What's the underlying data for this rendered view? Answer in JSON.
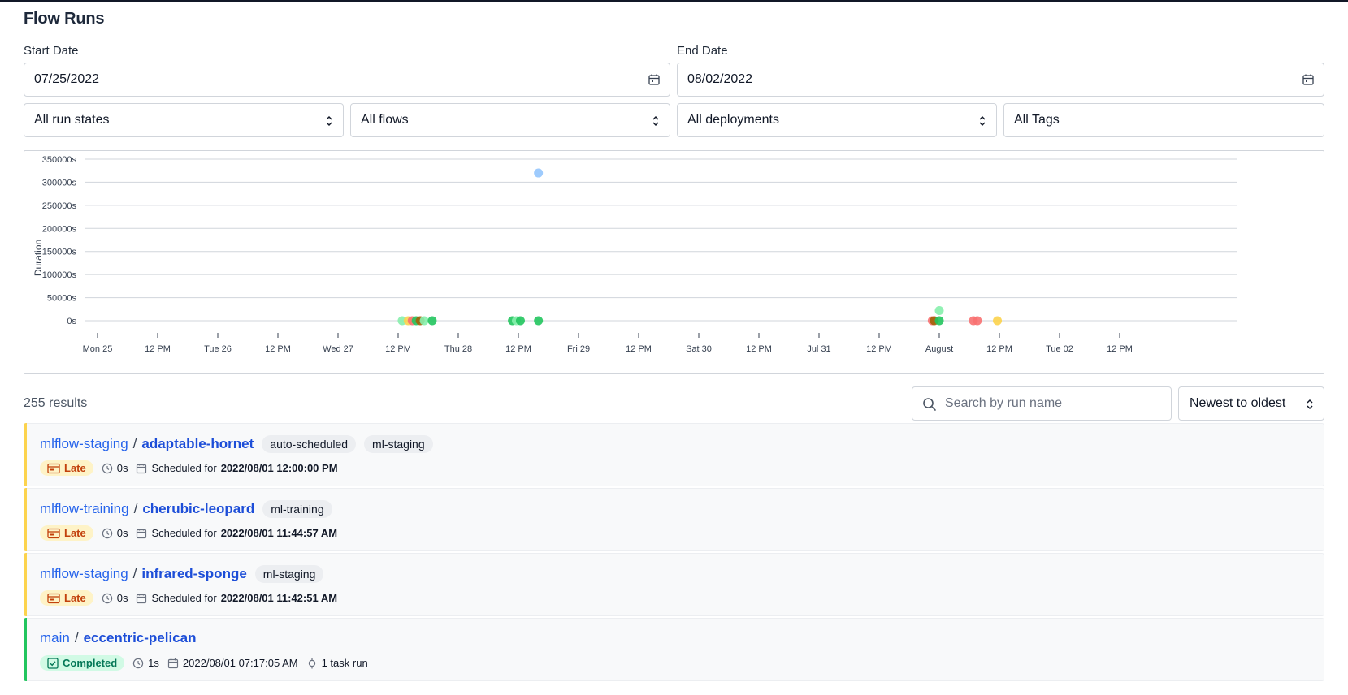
{
  "page": {
    "title": "Flow Runs"
  },
  "filters": {
    "start_date_label": "Start Date",
    "start_date_value": "07/25/2022",
    "end_date_label": "End Date",
    "end_date_value": "08/02/2022",
    "run_states": "All run states",
    "flows": "All flows",
    "deployments": "All deployments",
    "tags": "All Tags"
  },
  "chart_data": {
    "type": "scatter",
    "title": "",
    "xlabel": "",
    "ylabel": "Duration",
    "y_ticks": [
      "350000s",
      "300000s",
      "250000s",
      "200000s",
      "150000s",
      "100000s",
      "50000s",
      "0s"
    ],
    "ylim": [
      0,
      350000
    ],
    "x_ticks": [
      "Mon 25",
      "12 PM",
      "Tue 26",
      "12 PM",
      "Wed 27",
      "12 PM",
      "Thu 28",
      "12 PM",
      "Fri 29",
      "12 PM",
      "Sat 30",
      "12 PM",
      "Jul 31",
      "12 PM",
      "August",
      "12 PM",
      "Tue 02",
      "12 PM"
    ],
    "xlim": [
      "2022-07-25 00:00",
      "2022-08-02 12:00"
    ],
    "grid": true,
    "state_colors": {
      "completed": "#22c55e",
      "completed_light": "#86efac",
      "late": "#fcd34d",
      "failed": "#f87171",
      "running": "#93c5fd",
      "crashed": "#a16207"
    },
    "points": [
      {
        "x": "2022-07-28 16:00",
        "y": 320000,
        "state": "running"
      },
      {
        "x": "2022-07-27 12:48",
        "y": 0,
        "state": "completed_light"
      },
      {
        "x": "2022-07-27 14:00",
        "y": 0,
        "state": "late"
      },
      {
        "x": "2022-07-27 14:48",
        "y": 0,
        "state": "failed"
      },
      {
        "x": "2022-07-27 15:36",
        "y": 0,
        "state": "completed"
      },
      {
        "x": "2022-07-27 16:24",
        "y": 0,
        "state": "crashed"
      },
      {
        "x": "2022-07-27 17:12",
        "y": 0,
        "state": "completed_light"
      },
      {
        "x": "2022-07-27 18:48",
        "y": 0,
        "state": "completed"
      },
      {
        "x": "2022-07-28 10:48",
        "y": 0,
        "state": "completed"
      },
      {
        "x": "2022-07-28 11:36",
        "y": 0,
        "state": "completed_light"
      },
      {
        "x": "2022-07-28 12:24",
        "y": 0,
        "state": "completed"
      },
      {
        "x": "2022-07-28 16:00",
        "y": 0,
        "state": "completed"
      },
      {
        "x": "2022-07-31 22:36",
        "y": 0,
        "state": "failed"
      },
      {
        "x": "2022-07-31 23:00",
        "y": 0,
        "state": "crashed"
      },
      {
        "x": "2022-08-01 00:00",
        "y": 0,
        "state": "completed"
      },
      {
        "x": "2022-08-01 00:00",
        "y": 22000,
        "state": "completed_light"
      },
      {
        "x": "2022-08-01 06:48",
        "y": 0,
        "state": "failed"
      },
      {
        "x": "2022-08-01 07:36",
        "y": 0,
        "state": "failed"
      },
      {
        "x": "2022-08-01 11:36",
        "y": 0,
        "state": "late"
      }
    ]
  },
  "results": {
    "count_label": "255 results",
    "search_placeholder": "Search by run name",
    "sort_value": "Newest to oldest"
  },
  "runs": [
    {
      "flow": "mlflow-staging",
      "sep": "/",
      "name": "adaptable-hornet",
      "tags": [
        "auto-scheduled",
        "ml-staging"
      ],
      "state": "Late",
      "state_kind": "late",
      "duration": "0s",
      "time_prefix": "Scheduled for",
      "time": "2022/08/01 12:00:00 PM",
      "extra": "",
      "bar_color": "#fcd34d"
    },
    {
      "flow": "mlflow-training",
      "sep": "/",
      "name": "cherubic-leopard",
      "tags": [
        "ml-training"
      ],
      "state": "Late",
      "state_kind": "late",
      "duration": "0s",
      "time_prefix": "Scheduled for",
      "time": "2022/08/01 11:44:57 AM",
      "extra": "",
      "bar_color": "#fcd34d"
    },
    {
      "flow": "mlflow-staging",
      "sep": "/",
      "name": "infrared-sponge",
      "tags": [
        "ml-staging"
      ],
      "state": "Late",
      "state_kind": "late",
      "duration": "0s",
      "time_prefix": "Scheduled for",
      "time": "2022/08/01 11:42:51 AM",
      "extra": "",
      "bar_color": "#fcd34d"
    },
    {
      "flow": "main",
      "sep": "/",
      "name": "eccentric-pelican",
      "tags": [],
      "state": "Completed",
      "state_kind": "completed",
      "duration": "1s",
      "time_prefix": "",
      "time": "2022/08/01 07:17:05 AM",
      "extra": "1 task run",
      "bar_color": "#22c55e"
    }
  ]
}
